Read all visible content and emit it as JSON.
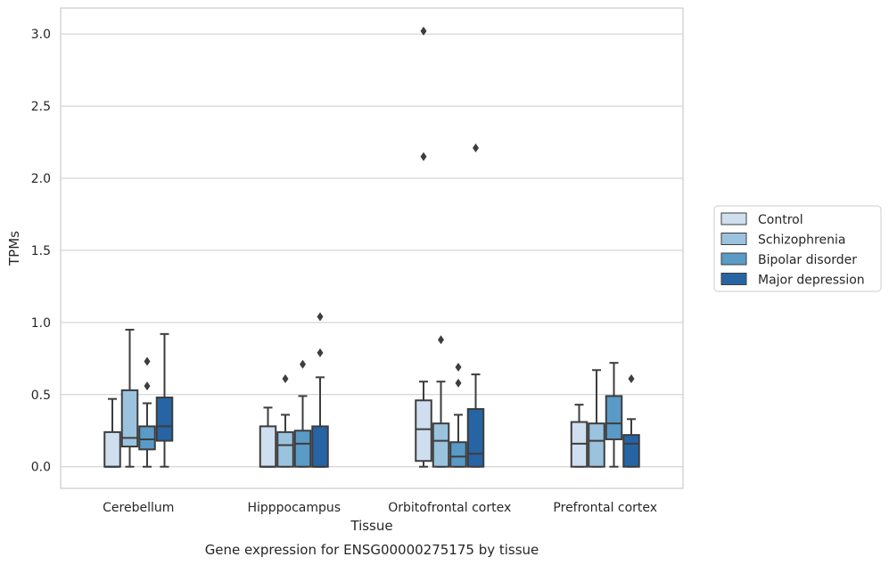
{
  "chart_data": {
    "type": "box",
    "xlabel": "Tissue",
    "ylabel": "TPMs",
    "caption": "Gene expression for ENSG00000275175 by tissue",
    "ylim": [
      -0.15,
      3.18
    ],
    "yticks": [
      "0.0",
      "0.5",
      "1.0",
      "1.5",
      "2.0",
      "2.5",
      "3.0"
    ],
    "ytick_values": [
      0,
      0.5,
      1.0,
      1.5,
      2.0,
      2.5,
      3.0
    ],
    "grid": "horizontal",
    "legend_position": "right",
    "categories": [
      "Cerebellum",
      "Hipppocampus",
      "Orbitofrontal cortex",
      "Prefrontal cortex"
    ],
    "series": [
      {
        "name": "Control",
        "color": "#d0dff0",
        "boxes": [
          {
            "whislo": 0.0,
            "q1": 0.0,
            "med": 0.0,
            "q3": 0.24,
            "whishi": 0.47,
            "fliers": []
          },
          {
            "whislo": 0.0,
            "q1": 0.0,
            "med": 0.0,
            "q3": 0.28,
            "whishi": 0.41,
            "fliers": []
          },
          {
            "whislo": 0.0,
            "q1": 0.04,
            "med": 0.26,
            "q3": 0.46,
            "whishi": 0.59,
            "fliers": [
              2.15,
              3.02
            ]
          },
          {
            "whislo": 0.0,
            "q1": 0.0,
            "med": 0.16,
            "q3": 0.31,
            "whishi": 0.43,
            "fliers": []
          }
        ]
      },
      {
        "name": "Schizophrenia",
        "color": "#9bc3de",
        "boxes": [
          {
            "whislo": 0.0,
            "q1": 0.14,
            "med": 0.2,
            "q3": 0.53,
            "whishi": 0.95,
            "fliers": []
          },
          {
            "whislo": 0.0,
            "q1": 0.0,
            "med": 0.15,
            "q3": 0.24,
            "whishi": 0.36,
            "fliers": [
              0.61
            ]
          },
          {
            "whislo": 0.0,
            "q1": 0.0,
            "med": 0.18,
            "q3": 0.3,
            "whishi": 0.59,
            "fliers": [
              0.88
            ]
          },
          {
            "whislo": 0.0,
            "q1": 0.0,
            "med": 0.18,
            "q3": 0.3,
            "whishi": 0.67,
            "fliers": []
          }
        ]
      },
      {
        "name": "Bipolar disorder",
        "color": "#5a9ac7",
        "boxes": [
          {
            "whislo": 0.0,
            "q1": 0.12,
            "med": 0.19,
            "q3": 0.28,
            "whishi": 0.44,
            "fliers": [
              0.56,
              0.73
            ]
          },
          {
            "whislo": 0.0,
            "q1": 0.0,
            "med": 0.16,
            "q3": 0.25,
            "whishi": 0.49,
            "fliers": [
              0.71
            ]
          },
          {
            "whislo": 0.0,
            "q1": 0.0,
            "med": 0.07,
            "q3": 0.17,
            "whishi": 0.36,
            "fliers": [
              0.58,
              0.69
            ]
          },
          {
            "whislo": 0.0,
            "q1": 0.19,
            "med": 0.3,
            "q3": 0.49,
            "whishi": 0.72,
            "fliers": []
          }
        ]
      },
      {
        "name": "Major depression",
        "color": "#2764a4",
        "boxes": [
          {
            "whislo": 0.0,
            "q1": 0.18,
            "med": 0.28,
            "q3": 0.48,
            "whishi": 0.92,
            "fliers": []
          },
          {
            "whislo": 0.0,
            "q1": 0.0,
            "med": 0.0,
            "q3": 0.28,
            "whishi": 0.62,
            "fliers": [
              0.79,
              1.04
            ]
          },
          {
            "whislo": 0.0,
            "q1": 0.0,
            "med": 0.09,
            "q3": 0.4,
            "whishi": 0.64,
            "fliers": [
              2.21
            ]
          },
          {
            "whislo": 0.0,
            "q1": 0.0,
            "med": 0.16,
            "q3": 0.22,
            "whishi": 0.33,
            "fliers": [
              0.61
            ]
          }
        ]
      }
    ]
  }
}
